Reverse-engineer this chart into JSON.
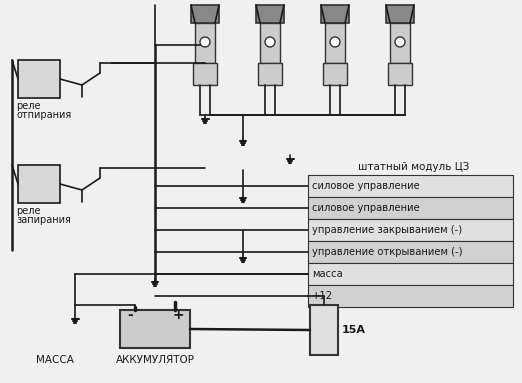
{
  "bg_color": "#f0f0f0",
  "line_color": "#1a1a1a",
  "text_color": "#1a1a1a",
  "box_fill": "#e8e8e8",
  "title": "",
  "relay1_label": [
    "реле",
    "отпирания"
  ],
  "relay2_label": [
    "реле",
    "запирания"
  ],
  "module_label": "штатный модуль ЦЗ",
  "connector_labels": [
    "силовое управление",
    "силовое управление",
    "управление закрыванием (-)",
    "управление открыванием (-)",
    "масса",
    "+12"
  ],
  "fuse_label": "15А",
  "mass_label": "МАССА",
  "battery_label": "АККУМУЛЯТОР"
}
